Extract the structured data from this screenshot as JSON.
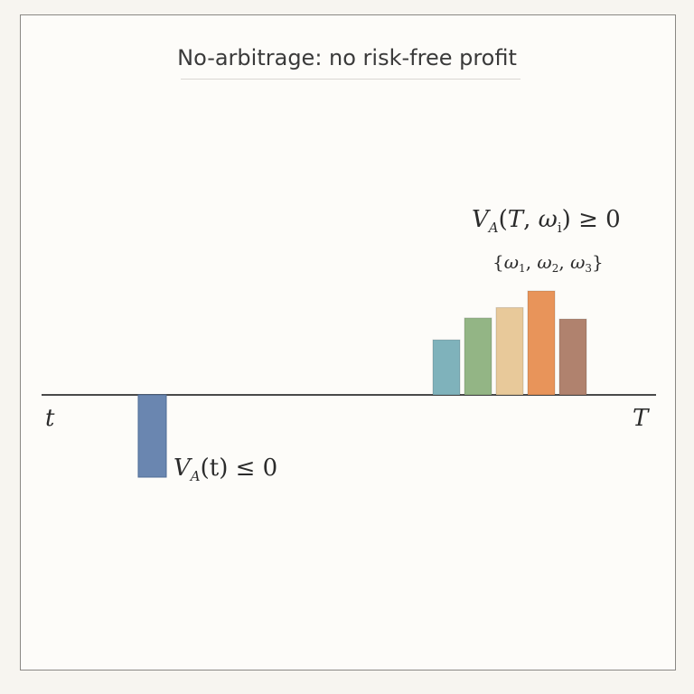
{
  "title": "No-arbitrage: no risk-free profit",
  "timeline": {
    "start_label": "t",
    "end_label": "T"
  },
  "payoff_today": {
    "value": -1,
    "color": "#6a86b0",
    "label": {
      "symbol": "V",
      "subscript": "A",
      "argument": "(t) ≤ 0"
    }
  },
  "payoff_future": {
    "values": [
      0.53,
      0.74,
      0.84,
      1.0,
      0.73
    ],
    "colors": [
      "#7fb2bb",
      "#93b585",
      "#e8c99a",
      "#e8945a",
      "#b0826e"
    ],
    "label": {
      "symbol": "V",
      "subscript": "A",
      "open": "(",
      "var_T": "T",
      "sep": ", ",
      "omega": "ω",
      "omega_sub": "i",
      "close": ") ≥ 0"
    },
    "scenarios": {
      "open": "{",
      "omega": "ω",
      "sub1": "1",
      "sub2": "2",
      "sub3": "3",
      "comma": ", ",
      "close": "}"
    }
  }
}
